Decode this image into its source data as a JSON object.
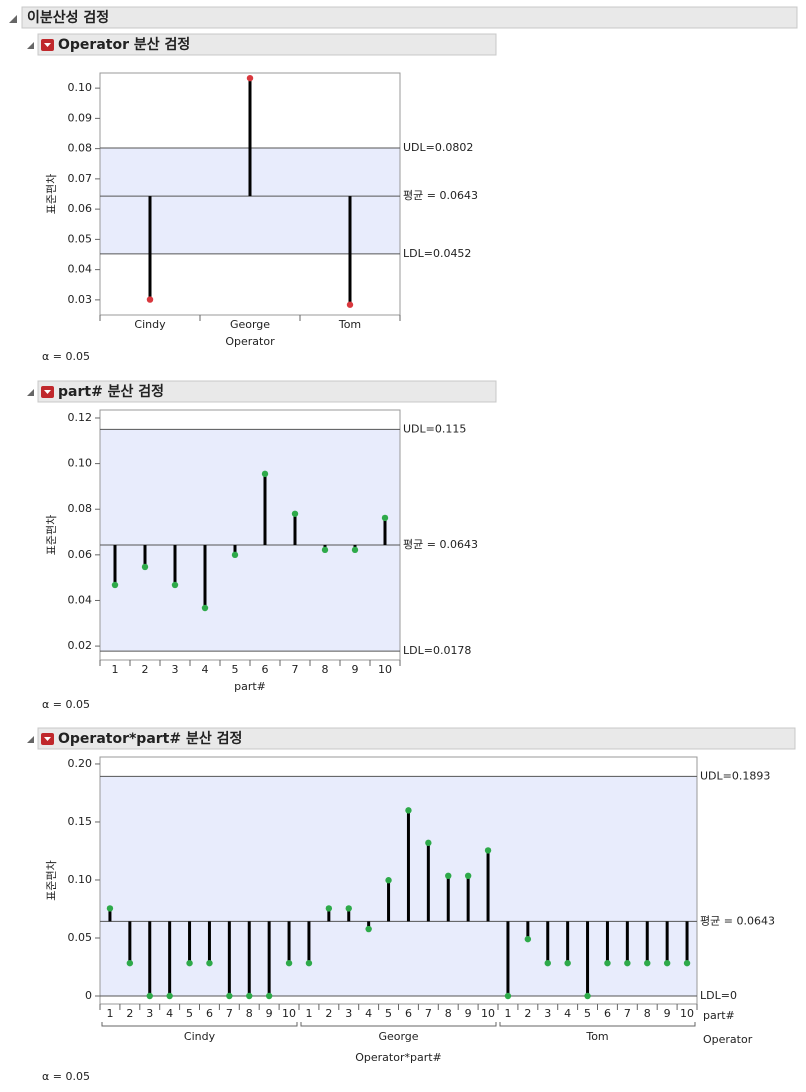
{
  "header": {
    "title": "이분산성 검정"
  },
  "chart_data": [
    {
      "type": "stem",
      "title": "Operator 분산 검정",
      "ylabel": "표준편차",
      "xlabel": "Operator",
      "note": "α = 0.05",
      "categories": [
        "Cindy",
        "George",
        "Tom"
      ],
      "values": [
        0.0301,
        0.1033,
        0.0284
      ],
      "color": "#d9383e",
      "center": {
        "value": 0.0643,
        "label": "평균 = 0.0643"
      },
      "limits": [
        {
          "value": 0.0802,
          "label": "UDL=0.0802"
        },
        {
          "value": 0.0452,
          "label": "LDL=0.0452"
        }
      ],
      "ylim": [
        0.025,
        0.105
      ],
      "yticks": [
        0.03,
        0.04,
        0.05,
        0.06,
        0.07,
        0.08,
        0.09,
        {
          "value": 0.1,
          "label": "0.10"
        }
      ]
    },
    {
      "type": "stem",
      "title": "part# 분산 검정",
      "ylabel": "표준편차",
      "xlabel": "part#",
      "note": "α = 0.05",
      "categories": [
        "1",
        "2",
        "3",
        "4",
        "5",
        "6",
        "7",
        "8",
        "9",
        "10"
      ],
      "values": [
        0.0468,
        0.0547,
        0.0468,
        0.0367,
        0.06,
        0.0955,
        0.078,
        0.0622,
        0.0622,
        0.0762
      ],
      "color": "#2eaa4a",
      "center": {
        "value": 0.0643,
        "label": "평균 = 0.0643"
      },
      "limits": [
        {
          "value": 0.115,
          "label": "UDL=0.115"
        },
        {
          "value": 0.0178,
          "label": "LDL=0.0178"
        }
      ],
      "ylim": [
        0.0139,
        0.1235
      ],
      "yticks": [
        0.02,
        0.04,
        0.06,
        0.08,
        {
          "value": 0.1,
          "label": "0.10"
        },
        0.12
      ]
    },
    {
      "type": "stem",
      "title": "Operator*part# 분산 검정",
      "ylabel": "표준편차",
      "xlabel": "Operator*part#",
      "note": "α = 0.05",
      "categories": [
        "1",
        "2",
        "3",
        "4",
        "5",
        "6",
        "7",
        "8",
        "9",
        "10",
        "1",
        "2",
        "3",
        "4",
        "5",
        "6",
        "7",
        "8",
        "9",
        "10",
        "1",
        "2",
        "3",
        "4",
        "5",
        "6",
        "7",
        "8",
        "9",
        "10"
      ],
      "groups": [
        "Cindy",
        "George",
        "Tom"
      ],
      "level_labels": [
        "part#",
        "Operator"
      ],
      "values": [
        0.0755,
        0.0283,
        0,
        0,
        0.0283,
        0.0283,
        0,
        0,
        0,
        0.0283,
        0.0283,
        0.0755,
        0.0755,
        0.0577,
        0.0998,
        0.16,
        0.132,
        0.1036,
        0.1036,
        0.1255,
        0,
        0.049,
        0.0283,
        0.0283,
        0,
        0.0283,
        0.0283,
        0.0283,
        0.0283,
        0.0283
      ],
      "color": "#2eaa4a",
      "center": {
        "value": 0.0643,
        "label": "평균 = 0.0643"
      },
      "limits": [
        {
          "value": 0.1893,
          "label": "UDL=0.1893"
        },
        {
          "value": 0,
          "label": "LDL=0"
        }
      ],
      "ylim": [
        -0.0069,
        0.206
      ],
      "yticks": [
        0,
        0.05,
        {
          "value": 0.1,
          "label": "0.10"
        },
        0.15,
        {
          "value": 0.2,
          "label": "0.20"
        }
      ]
    }
  ]
}
